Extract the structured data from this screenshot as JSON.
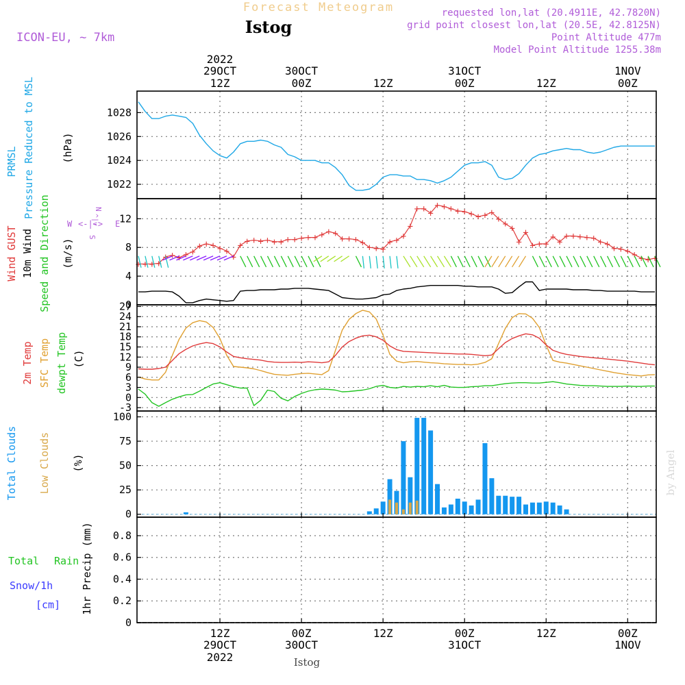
{
  "header": {
    "title": "Forecast Meteogram",
    "station": "Istog",
    "model": "ICON-EU, ~ 7km",
    "requested": "requested lon,lat (20.4911E, 42.7820N)",
    "gridpoint": "grid point closest lon,lat (20.5E, 42.8125N)",
    "altitude": "Point Altitude 477m",
    "model_altitude": "Model Point Altitude 1255.38m",
    "watermark": "by Angel",
    "footer_station": "Istog"
  },
  "time_axis": {
    "top": [
      {
        "l1": "2022",
        "l2": "29OCT",
        "l3": "12Z"
      },
      {
        "l1": "",
        "l2": "30OCT",
        "l3": "00Z"
      },
      {
        "l1": "",
        "l2": "",
        "l3": "12Z"
      },
      {
        "l1": "",
        "l2": "31OCT",
        "l3": "00Z"
      },
      {
        "l1": "",
        "l2": "",
        "l3": "12Z"
      },
      {
        "l1": "",
        "l2": "1NOV",
        "l3": "00Z"
      }
    ],
    "bottom": [
      {
        "l1": "12Z",
        "l2": "29OCT",
        "l3": "2022"
      },
      {
        "l1": "00Z",
        "l2": "30OCT",
        "l3": ""
      },
      {
        "l1": "12Z",
        "l2": "",
        "l3": ""
      },
      {
        "l1": "00Z",
        "l2": "31OCT",
        "l3": ""
      },
      {
        "l1": "12Z",
        "l2": "",
        "l3": ""
      },
      {
        "l1": "00Z",
        "l2": "1NOV",
        "l3": ""
      }
    ]
  },
  "panels": {
    "pressure": {
      "labels": [
        "PRMSL",
        "Pressure Reduced to MSL",
        "(hPa)"
      ],
      "ticks": [
        "1022",
        "1024",
        "1026",
        "1028"
      ],
      "color": "#1ea7e6"
    },
    "wind": {
      "labels": [
        "Wind GUST",
        "10m Wind",
        "(m/s)",
        "Speed and Direction"
      ],
      "ticks": [
        "0",
        "4",
        "8",
        "12"
      ],
      "compass": {
        "n": "N",
        "s": "S",
        "w": "W",
        "e": "E",
        "arrow_h": "<-|->",
        "arrow_v": "^|v"
      },
      "gust_color": "#e03a3a",
      "speed_color": "#000000"
    },
    "temperature": {
      "labels": [
        "2m Temp",
        "SFC Temp",
        "dewpt Temp",
        "(C)"
      ],
      "ticks": [
        "-3",
        "0",
        "3",
        "6",
        "9",
        "12",
        "15",
        "18",
        "21",
        "24",
        "27"
      ],
      "colors": {
        "t2m": "#e03a3a",
        "sfc": "#e0a030",
        "dew": "#22c422"
      }
    },
    "clouds": {
      "labels": [
        "Total Clouds",
        "Low Clouds",
        "(%)"
      ],
      "ticks": [
        "0",
        "25",
        "50",
        "75",
        "100"
      ],
      "colors": {
        "total": "#1497ef",
        "low": "#d8a84a"
      }
    },
    "precip": {
      "labels": [
        "Total",
        "Rain",
        "Snow/1h",
        "[cm]",
        "1hr Precip (mm)"
      ],
      "ticks": [
        "0",
        "0.2",
        "0.4",
        "0.6",
        "0.8"
      ]
    }
  },
  "chart_data": [
    {
      "type": "line",
      "title": "PRMSL Pressure Reduced to MSL",
      "ylabel": "(hPa)",
      "x_unit": "hours since 2022-10-29 00Z",
      "ylim": [
        1020.8,
        1029.8
      ],
      "x": [
        0,
        1,
        2,
        3,
        4,
        5,
        6,
        7,
        8,
        9,
        10,
        11,
        12,
        13,
        14,
        15,
        16,
        17,
        18,
        19,
        20,
        21,
        22,
        23,
        24,
        25,
        26,
        27,
        28,
        29,
        30,
        31,
        32,
        33,
        34,
        35,
        36,
        37,
        38,
        39,
        40,
        41,
        42,
        43,
        44,
        45,
        46,
        47,
        48,
        49,
        50,
        51,
        52,
        53,
        54,
        55,
        56,
        57,
        58,
        59,
        60,
        61,
        62,
        63,
        64,
        65,
        66,
        67,
        68,
        69,
        70,
        71,
        72,
        73,
        74,
        75,
        76
      ],
      "values": [
        1028.9,
        1028.1,
        1027.5,
        1027.5,
        1027.7,
        1027.8,
        1027.7,
        1027.6,
        1027.1,
        1026.1,
        1025.4,
        1024.8,
        1024.4,
        1024.2,
        1024.7,
        1025.4,
        1025.6,
        1025.6,
        1025.7,
        1025.6,
        1025.3,
        1025.1,
        1024.5,
        1024.3,
        1024.0,
        1024.0,
        1024.0,
        1023.8,
        1023.8,
        1023.4,
        1022.8,
        1021.9,
        1021.5,
        1021.5,
        1021.6,
        1022.0,
        1022.6,
        1022.8,
        1022.8,
        1022.7,
        1022.7,
        1022.4,
        1022.4,
        1022.3,
        1022.1,
        1022.3,
        1022.6,
        1023.1,
        1023.6,
        1023.8,
        1023.8,
        1023.9,
        1023.6,
        1022.6,
        1022.4,
        1022.5,
        1022.9,
        1023.6,
        1024.2,
        1024.5,
        1024.6,
        1024.8,
        1024.9,
        1025.0,
        1024.9,
        1024.9,
        1024.7,
        1024.6,
        1024.7,
        1024.9,
        1025.1,
        1025.2,
        1025.2,
        1025.2,
        1025.2,
        1025.2,
        1025.2
      ]
    },
    {
      "type": "line",
      "title": "Wind GUST / 10m Wind Speed and Direction",
      "ylabel": "(m/s)",
      "ylim": [
        0,
        14.8
      ],
      "x": [
        0,
        1,
        2,
        3,
        4,
        5,
        6,
        7,
        8,
        9,
        10,
        11,
        12,
        13,
        14,
        15,
        16,
        17,
        18,
        19,
        20,
        21,
        22,
        23,
        24,
        25,
        26,
        27,
        28,
        29,
        30,
        31,
        32,
        33,
        34,
        35,
        36,
        37,
        38,
        39,
        40,
        41,
        42,
        43,
        44,
        45,
        46,
        47,
        48,
        49,
        50,
        51,
        52,
        53,
        54,
        55,
        56,
        57,
        58,
        59,
        60,
        61,
        62,
        63,
        64,
        65,
        66,
        67,
        68,
        69,
        70,
        71,
        72,
        73,
        74,
        75,
        76
      ],
      "series": [
        {
          "name": "Wind GUST",
          "values": [
            5.7,
            5.7,
            5.7,
            5.8,
            6.7,
            6.9,
            6.6,
            7.0,
            7.4,
            8.2,
            8.5,
            8.3,
            7.9,
            7.5,
            6.7,
            8.3,
            8.9,
            9.0,
            8.9,
            9.0,
            8.8,
            8.8,
            9.1,
            9.1,
            9.3,
            9.4,
            9.4,
            9.8,
            10.2,
            10.0,
            9.2,
            9.2,
            9.1,
            8.7,
            8.0,
            7.9,
            7.8,
            8.8,
            9.0,
            9.6,
            11.0,
            13.4,
            13.4,
            12.8,
            13.9,
            13.7,
            13.4,
            13.1,
            13.0,
            12.7,
            12.3,
            12.5,
            12.9,
            12.0,
            11.3,
            10.7,
            8.8,
            10.1,
            8.3,
            8.5,
            8.5,
            9.5,
            8.8,
            9.6,
            9.6,
            9.5,
            9.4,
            9.3,
            8.8,
            8.5,
            7.9,
            7.8,
            7.5,
            7.0,
            6.5,
            6.3,
            6.5
          ]
        },
        {
          "name": "10m Wind",
          "values": [
            1.8,
            1.8,
            1.9,
            1.9,
            1.9,
            1.8,
            1.2,
            0.3,
            0.3,
            0.6,
            0.8,
            0.7,
            0.6,
            0.5,
            0.6,
            1.9,
            2.0,
            2.0,
            2.1,
            2.1,
            2.1,
            2.2,
            2.2,
            2.3,
            2.3,
            2.3,
            2.2,
            2.1,
            2.0,
            1.5,
            1.0,
            0.9,
            0.8,
            0.8,
            0.9,
            1.0,
            1.4,
            1.5,
            2.0,
            2.2,
            2.3,
            2.5,
            2.6,
            2.7,
            2.7,
            2.7,
            2.7,
            2.7,
            2.6,
            2.6,
            2.5,
            2.5,
            2.5,
            2.2,
            1.6,
            1.7,
            2.5,
            3.2,
            3.2,
            2.0,
            2.2,
            2.2,
            2.2,
            2.2,
            2.1,
            2.1,
            2.1,
            2.0,
            2.0,
            1.9,
            1.9,
            1.9,
            1.9,
            1.9,
            1.8,
            1.8,
            1.8
          ]
        }
      ]
    },
    {
      "type": "line",
      "title": "2m Temp / SFC Temp / dewpt Temp",
      "ylabel": "(C)",
      "ylim": [
        -4,
        27.5
      ],
      "x": [
        0,
        1,
        2,
        3,
        4,
        5,
        6,
        7,
        8,
        9,
        10,
        11,
        12,
        13,
        14,
        15,
        16,
        17,
        18,
        19,
        20,
        21,
        22,
        23,
        24,
        25,
        26,
        27,
        28,
        29,
        30,
        31,
        32,
        33,
        34,
        35,
        36,
        37,
        38,
        39,
        40,
        41,
        42,
        43,
        44,
        45,
        46,
        47,
        48,
        49,
        50,
        51,
        52,
        53,
        54,
        55,
        56,
        57,
        58,
        59,
        60,
        61,
        62,
        63,
        64,
        65,
        66,
        67,
        68,
        69,
        70,
        71,
        72,
        73,
        74,
        75,
        76
      ],
      "series": [
        {
          "name": "2m Temp",
          "values": [
            8.5,
            8.4,
            8.4,
            8.6,
            9.0,
            11.0,
            13.0,
            14.3,
            15.3,
            15.9,
            16.3,
            16.0,
            15.0,
            13.5,
            12.2,
            11.8,
            11.5,
            11.3,
            11.1,
            10.7,
            10.5,
            10.4,
            10.4,
            10.5,
            10.4,
            10.6,
            10.5,
            10.3,
            10.6,
            12.5,
            15.0,
            16.6,
            17.6,
            18.3,
            18.5,
            18.0,
            17.0,
            15.3,
            14.2,
            13.7,
            13.6,
            13.5,
            13.4,
            13.3,
            13.2,
            13.1,
            13.0,
            12.9,
            12.9,
            12.8,
            12.6,
            12.4,
            12.6,
            14.5,
            16.3,
            17.5,
            18.3,
            18.9,
            18.6,
            17.6,
            15.6,
            14.0,
            13.3,
            12.8,
            12.5,
            12.2,
            12.0,
            11.8,
            11.6,
            11.4,
            11.2,
            11.0,
            10.8,
            10.5,
            10.2,
            9.9,
            9.7
          ]
        },
        {
          "name": "SFC Temp",
          "values": [
            6.1,
            5.5,
            5.2,
            5.2,
            7.5,
            12.5,
            17.3,
            20.6,
            22.2,
            22.8,
            22.4,
            20.8,
            17.5,
            12.5,
            9.2,
            9.0,
            8.8,
            8.5,
            8.0,
            7.4,
            6.9,
            6.7,
            6.6,
            6.9,
            7.1,
            7.2,
            7.0,
            6.8,
            8.0,
            14.0,
            20.0,
            23.2,
            24.9,
            25.9,
            25.4,
            23.3,
            18.5,
            12.8,
            10.8,
            10.3,
            10.6,
            10.7,
            10.5,
            10.3,
            10.2,
            10.0,
            9.9,
            9.8,
            9.8,
            9.7,
            9.9,
            10.4,
            11.5,
            16.0,
            20.5,
            23.7,
            24.9,
            24.8,
            23.5,
            20.8,
            15.5,
            11.0,
            10.5,
            10.2,
            9.8,
            9.4,
            9.0,
            8.6,
            8.2,
            7.8,
            7.4,
            7.1,
            6.8,
            6.6,
            6.4,
            6.7,
            6.8
          ]
        },
        {
          "name": "dewpt Temp",
          "values": [
            2.5,
            1.0,
            -1.5,
            -2.6,
            -1.5,
            -0.5,
            0.2,
            0.8,
            0.9,
            1.9,
            3.0,
            4.0,
            4.4,
            3.8,
            3.2,
            2.8,
            2.8,
            -2.4,
            -0.8,
            2.2,
            1.8,
            -0.2,
            -1.0,
            0.3,
            1.2,
            1.9,
            2.3,
            2.5,
            2.4,
            2.2,
            1.7,
            1.8,
            2.0,
            2.2,
            2.6,
            3.3,
            3.6,
            3.0,
            2.8,
            3.3,
            3.1,
            3.3,
            3.2,
            3.5,
            3.2,
            3.6,
            3.1,
            3.0,
            3.0,
            3.2,
            3.3,
            3.5,
            3.5,
            3.8,
            4.1,
            4.3,
            4.4,
            4.4,
            4.3,
            4.3,
            4.5,
            4.7,
            4.4,
            4.0,
            3.8,
            3.6,
            3.5,
            3.5,
            3.4,
            3.3,
            3.3,
            3.3,
            3.4,
            3.3,
            3.3,
            3.4,
            3.4
          ]
        }
      ]
    },
    {
      "type": "bar",
      "title": "Total Clouds / Low Clouds",
      "ylabel": "(%)",
      "ylim": [
        -3,
        106
      ],
      "x": [
        0,
        1,
        2,
        3,
        4,
        5,
        6,
        7,
        8,
        9,
        10,
        11,
        12,
        13,
        14,
        15,
        16,
        17,
        18,
        19,
        20,
        21,
        22,
        23,
        24,
        25,
        26,
        27,
        28,
        29,
        30,
        31,
        32,
        33,
        34,
        35,
        36,
        37,
        38,
        39,
        40,
        41,
        42,
        43,
        44,
        45,
        46,
        47,
        48,
        49,
        50,
        51,
        52,
        53,
        54,
        55,
        56,
        57,
        58,
        59,
        60,
        61,
        62,
        63,
        64,
        65,
        66,
        67,
        68,
        69,
        70,
        71,
        72,
        73,
        74,
        75,
        76
      ],
      "series": [
        {
          "name": "Total Clouds",
          "values": [
            0,
            0,
            0,
            0,
            0,
            0,
            0,
            2,
            0,
            0,
            0,
            0,
            0,
            0,
            0,
            0,
            0,
            0,
            0,
            0,
            0,
            0,
            0,
            0,
            0,
            0,
            0,
            0,
            0,
            0,
            0,
            0,
            0,
            0,
            3,
            6,
            13,
            36,
            24,
            75,
            38,
            99,
            99,
            86,
            31,
            7,
            10,
            16,
            13,
            9,
            15,
            73,
            37,
            19,
            19,
            18,
            18,
            10,
            12,
            12,
            13,
            12,
            9,
            5,
            0,
            0,
            0,
            0,
            0,
            0,
            0,
            0,
            0,
            0,
            0,
            0,
            0
          ]
        },
        {
          "name": "Low Clouds",
          "values": [
            0,
            0,
            0,
            0,
            0,
            0,
            0,
            0,
            0,
            0,
            0,
            0,
            0,
            0,
            0,
            0,
            0,
            0,
            0,
            0,
            0,
            0,
            0,
            0,
            0,
            0,
            0,
            0,
            0,
            0,
            0,
            0,
            0,
            0,
            0,
            0,
            0,
            15,
            12,
            5,
            12,
            14,
            0,
            0,
            0,
            0,
            0,
            0,
            0,
            0,
            0,
            0,
            0,
            0,
            0,
            0,
            0,
            0,
            0,
            0,
            0,
            0,
            0,
            0,
            0,
            0,
            0,
            0,
            0,
            0,
            0,
            0,
            0,
            0,
            0,
            0,
            0
          ]
        }
      ]
    },
    {
      "type": "bar",
      "title": "1hr Precip",
      "ylabel": "1hr Precip (mm)",
      "ylim": [
        0,
        0.97
      ],
      "x": [
        0,
        76
      ],
      "values": [
        0,
        0
      ]
    }
  ],
  "wind_direction_colors": [
    "#18c3c3",
    "#22c422",
    "#a9e22a",
    "#3a3aff",
    "#e0a030",
    "#8a1aff"
  ]
}
